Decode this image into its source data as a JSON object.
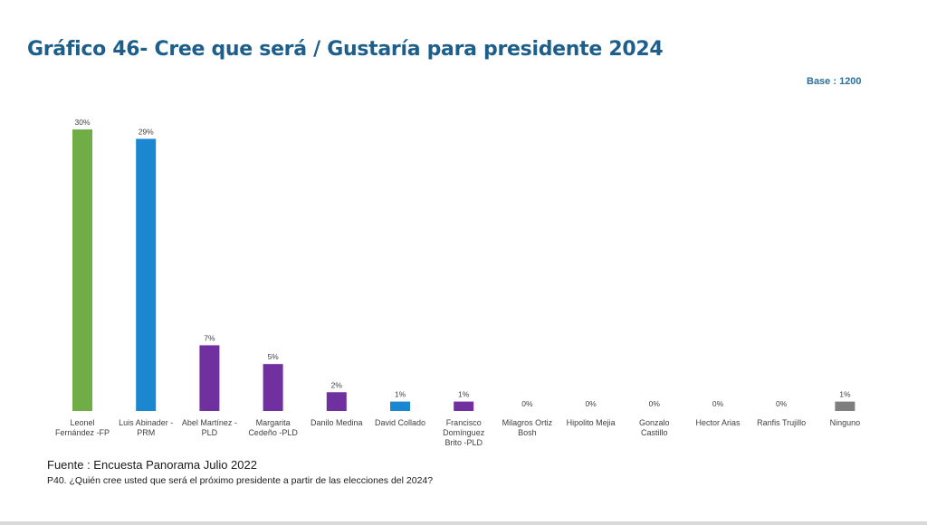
{
  "header": {
    "title": "Gráfico 46- Cree que será / Gustaría para presidente 2024",
    "base_label": "Base : 1200"
  },
  "footer": {
    "source": "Fuente : Encuesta Panorama Julio 2022",
    "question": "P40. ¿Quién cree usted que será el próximo presidente a partir de las elecciones del 2024?"
  },
  "colors": {
    "title": "#1d5f8a",
    "fp_green": "#70ad47",
    "prm_blue": "#1a87d0",
    "pld_purple": "#7030a0",
    "none_gray": "#7f7f7f"
  },
  "chart_data": {
    "type": "bar",
    "title": "Gráfico 46- Cree que será / Gustaría para presidente 2024",
    "xlabel": "",
    "ylabel": "",
    "ylim": [
      0,
      30
    ],
    "grid": false,
    "legend": "none",
    "value_suffix": "%",
    "categories": [
      [
        "Leonel",
        "Fernández -FP"
      ],
      [
        "Luis Abinader -",
        "PRM"
      ],
      [
        "Abel Martínez -",
        "PLD"
      ],
      [
        "Margarita",
        "Cedeño -PLD"
      ],
      [
        "Danilo Medina"
      ],
      [
        "David Collado"
      ],
      [
        "Francisco",
        "Domínguez",
        "Brito -PLD"
      ],
      [
        "Milagros Ortiz",
        "Bosh"
      ],
      [
        "Hipolito Mejia"
      ],
      [
        "Gonzalo",
        "Castillo"
      ],
      [
        "Hector Arias"
      ],
      [
        "Ranfis Trujillo"
      ],
      [
        "Ninguno"
      ]
    ],
    "values": [
      30,
      29,
      7,
      5,
      2,
      1,
      1,
      0,
      0,
      0,
      0,
      0,
      1
    ],
    "bar_colors": [
      "#70ad47",
      "#1a87d0",
      "#7030a0",
      "#7030a0",
      "#7030a0",
      "#1a87d0",
      "#7030a0",
      "#7030a0",
      "#7030a0",
      "#7030a0",
      "#7030a0",
      "#7030a0",
      "#7f7f7f"
    ]
  }
}
